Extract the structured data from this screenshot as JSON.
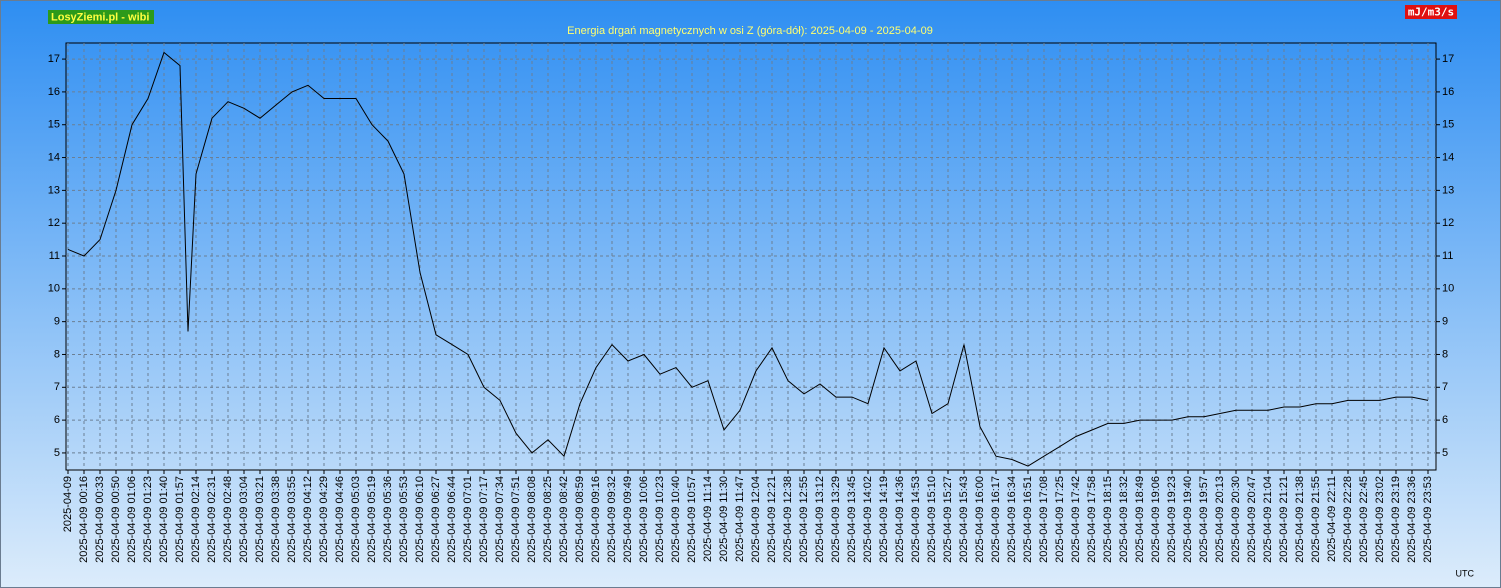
{
  "chart_data": {
    "type": "line",
    "badge": "LosyZiemi.pl - wibi",
    "unit": "mJ/m3/s",
    "title": "Energia drgań magnetycznych w osi Z (góra-dół): 2025-04-09 - 2025-04-09",
    "timezone": "UTC",
    "categories": [
      "2025-04-09",
      "2025-04-09 00:16",
      "2025-04-09 00:33",
      "2025-04-09 00:50",
      "2025-04-09 01:06",
      "2025-04-09 01:23",
      "2025-04-09 01:40",
      "2025-04-09 01:57",
      null,
      "2025-04-09 02:14",
      "2025-04-09 02:31",
      "2025-04-09 02:48",
      "2025-04-09 03:04",
      "2025-04-09 03:21",
      "2025-04-09 03:38",
      "2025-04-09 03:55",
      "2025-04-09 04:12",
      "2025-04-09 04:29",
      "2025-04-09 04:46",
      "2025-04-09 05:03",
      "2025-04-09 05:19",
      "2025-04-09 05:36",
      "2025-04-09 05:53",
      "2025-04-09 06:10",
      "2025-04-09 06:27",
      "2025-04-09 06:44",
      "2025-04-09 07:01",
      "2025-04-09 07:17",
      "2025-04-09 07:34",
      "2025-04-09 07:51",
      "2025-04-09 08:08",
      "2025-04-09 08:25",
      "2025-04-09 08:42",
      "2025-04-09 08:59",
      "2025-04-09 09:16",
      "2025-04-09 09:32",
      "2025-04-09 09:49",
      "2025-04-09 10:06",
      "2025-04-09 10:23",
      "2025-04-09 10:40",
      "2025-04-09 10:57",
      "2025-04-09 11:14",
      "2025-04-09 11:30",
      "2025-04-09 11:47",
      "2025-04-09 12:04",
      "2025-04-09 12:21",
      "2025-04-09 12:38",
      "2025-04-09 12:55",
      "2025-04-09 13:12",
      "2025-04-09 13:29",
      "2025-04-09 13:45",
      "2025-04-09 14:02",
      "2025-04-09 14:19",
      "2025-04-09 14:36",
      "2025-04-09 14:53",
      "2025-04-09 15:10",
      "2025-04-09 15:27",
      "2025-04-09 15:43",
      "2025-04-09 16:00",
      "2025-04-09 16:17",
      "2025-04-09 16:34",
      "2025-04-09 16:51",
      "2025-04-09 17:08",
      "2025-04-09 17:25",
      "2025-04-09 17:42",
      "2025-04-09 17:58",
      "2025-04-09 18:15",
      "2025-04-09 18:32",
      "2025-04-09 18:49",
      "2025-04-09 19:06",
      "2025-04-09 19:23",
      "2025-04-09 19:40",
      "2025-04-09 19:57",
      "2025-04-09 20:13",
      "2025-04-09 20:30",
      "2025-04-09 20:47",
      "2025-04-09 21:04",
      "2025-04-09 21:21",
      "2025-04-09 21:38",
      "2025-04-09 21:55",
      "2025-04-09 22:11",
      "2025-04-09 22:28",
      "2025-04-09 22:45",
      "2025-04-09 23:02",
      "2025-04-09 23:19",
      "2025-04-09 23:36",
      "2025-04-09 23:53"
    ],
    "values": [
      11.2,
      11.0,
      11.5,
      13.0,
      15.0,
      15.8,
      17.2,
      16.8,
      8.7,
      13.5,
      15.2,
      15.7,
      15.5,
      15.2,
      15.6,
      16.0,
      16.2,
      15.8,
      15.8,
      15.8,
      15.0,
      14.5,
      13.5,
      10.5,
      8.6,
      8.3,
      8.0,
      7.0,
      6.6,
      5.6,
      5.0,
      5.4,
      4.9,
      6.5,
      7.6,
      8.3,
      7.8,
      8.0,
      7.4,
      7.6,
      7.0,
      7.2,
      5.7,
      6.3,
      7.5,
      8.2,
      7.2,
      6.8,
      7.1,
      6.7,
      6.7,
      6.5,
      8.2,
      7.5,
      7.8,
      6.2,
      6.5,
      8.3,
      5.8,
      4.9,
      4.8,
      4.6,
      4.9,
      5.2,
      5.5,
      5.7,
      5.9,
      5.9,
      6.0,
      6.0,
      6.0,
      6.1,
      6.1,
      6.2,
      6.3,
      6.3,
      6.3,
      6.4,
      6.4,
      6.5,
      6.5,
      6.6,
      6.6,
      6.6,
      6.7,
      6.7,
      6.6
    ],
    "color": "#000000",
    "ylim": [
      4.48,
      17.49
    ],
    "yticks": [
      5,
      6,
      7,
      8,
      9,
      10,
      11,
      12,
      13,
      14,
      15,
      16,
      17
    ],
    "grid": true
  }
}
